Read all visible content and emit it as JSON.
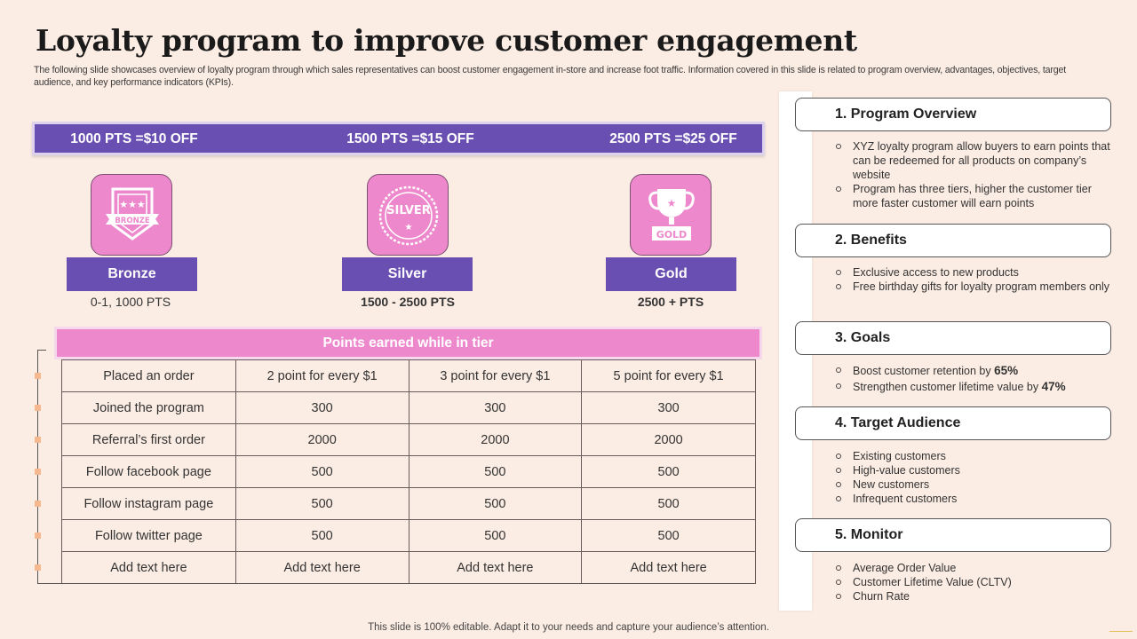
{
  "title": "Loyalty program to improve customer engagement",
  "subtitle": "The following slide showcases overview of loyalty program through which sales representatives can boost customer engagement in-store and increase foot traffic. Information covered in this slide is related to program overview, advantages, objectives, target audience, and key performance indicators (KPIs).",
  "banner": [
    "1000 PTS =$10 OFF",
    "1500 PTS =$15 OFF",
    "2500 PTS =$25 OFF"
  ],
  "tiers": [
    {
      "badge_text": "BRONZE",
      "name": "Bronze",
      "range": "0-1, 1000 PTS",
      "icon": "ribbon-shield-icon"
    },
    {
      "badge_text": "SILVER",
      "name": "Silver",
      "range": "1500 - 2500 PTS",
      "icon": "laurel-seal-icon"
    },
    {
      "badge_text": "GOLD",
      "name": "Gold",
      "range": "2500 + PTS",
      "icon": "trophy-icon"
    }
  ],
  "points_header": "Points earned while in tier",
  "points_rows": [
    [
      "Placed an order",
      "2 point for every $1",
      "3 point for every $1",
      "5 point for every $1"
    ],
    [
      "Joined the program",
      "300",
      "300",
      "300"
    ],
    [
      "Referral’s first order",
      "2000",
      "2000",
      "2000"
    ],
    [
      "Follow facebook page",
      "500",
      "500",
      "500"
    ],
    [
      "Follow instagram page",
      "500",
      "500",
      "500"
    ],
    [
      "Follow twitter page",
      "500",
      "500",
      "500"
    ],
    [
      "Add text here",
      "Add text here",
      "Add text here",
      "Add text here"
    ]
  ],
  "sections": [
    {
      "title": "1. Program Overview",
      "items": [
        {
          "text": "XYZ loyalty program allow buyers to earn points that can be redeemed for all products on company’s website"
        },
        {
          "text": "Program has three tiers, higher the customer tier more faster customer will earn points"
        }
      ]
    },
    {
      "title": "2. Benefits",
      "items": [
        {
          "text": "Exclusive access to new products"
        },
        {
          "text": "Free birthday gifts for loyalty program members only"
        }
      ]
    },
    {
      "title": "3. Goals",
      "items": [
        {
          "text": "Boost customer retention by ",
          "bold": "65%"
        },
        {
          "text": "Strengthen customer lifetime value  by ",
          "bold": "47%"
        }
      ]
    },
    {
      "title": "4. Target Audience",
      "items": [
        {
          "text": "Existing customers"
        },
        {
          "text": "High-value  customers"
        },
        {
          "text": "New customers"
        },
        {
          "text": "Infrequent  customers"
        }
      ]
    },
    {
      "title": "5. Monitor",
      "items": [
        {
          "text": "Average  Order Value"
        },
        {
          "text": "Customer Lifetime Value (CLTV)"
        },
        {
          "text": "Churn Rate"
        }
      ]
    }
  ],
  "footer": "This slide is 100% editable. Adapt it to your needs and capture your audience’s attention.",
  "colors": {
    "purple": "#6a4fb2",
    "pink": "#ee88cc",
    "background": "#fcede4",
    "accent_square": "#f5b88f"
  }
}
